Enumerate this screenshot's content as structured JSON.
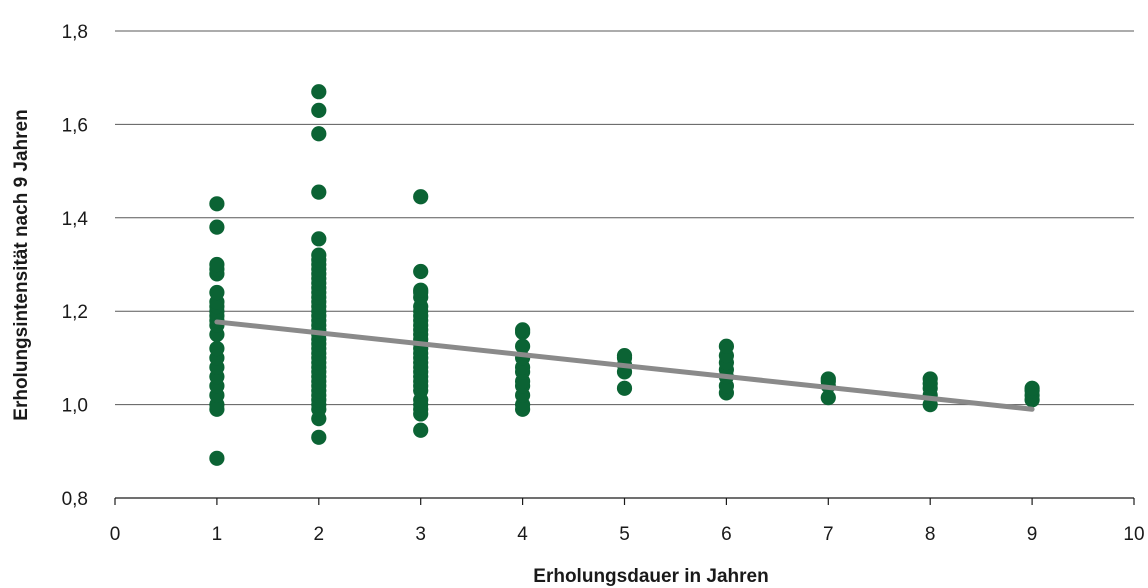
{
  "chart_data": {
    "type": "scatter",
    "xlabel": "Erholungsdauer in Jahren",
    "ylabel": "Erholungsintensität nach 9 Jahren",
    "xlim": [
      0,
      10
    ],
    "ylim": [
      0.8,
      1.8
    ],
    "x_ticks": [
      "0",
      "1",
      "2",
      "3",
      "4",
      "5",
      "6",
      "7",
      "8",
      "9",
      "10"
    ],
    "y_ticks": [
      "0,8",
      "1,0",
      "1,2",
      "1,4",
      "1,6",
      "1,8"
    ],
    "grid": "horizontal",
    "colors": {
      "points": "#0b6334",
      "trend": "#8a8a8a",
      "grid": "#595959"
    },
    "series": [
      {
        "type": "scatter",
        "points": [
          [
            1,
            0.885
          ],
          [
            1,
            0.99
          ],
          [
            1,
            1.0
          ],
          [
            1,
            1.02
          ],
          [
            1,
            1.04
          ],
          [
            1,
            1.06
          ],
          [
            1,
            1.08
          ],
          [
            1,
            1.1
          ],
          [
            1,
            1.12
          ],
          [
            1,
            1.15
          ],
          [
            1,
            1.17
          ],
          [
            1,
            1.18
          ],
          [
            1,
            1.19
          ],
          [
            1,
            1.2
          ],
          [
            1,
            1.21
          ],
          [
            1,
            1.22
          ],
          [
            1,
            1.24
          ],
          [
            1,
            1.28
          ],
          [
            1,
            1.29
          ],
          [
            1,
            1.3
          ],
          [
            1,
            1.38
          ],
          [
            1,
            1.43
          ],
          [
            2,
            0.93
          ],
          [
            2,
            0.97
          ],
          [
            2,
            0.99
          ],
          [
            2,
            1.0
          ],
          [
            2,
            1.01
          ],
          [
            2,
            1.02
          ],
          [
            2,
            1.03
          ],
          [
            2,
            1.04
          ],
          [
            2,
            1.05
          ],
          [
            2,
            1.06
          ],
          [
            2,
            1.07
          ],
          [
            2,
            1.08
          ],
          [
            2,
            1.09
          ],
          [
            2,
            1.1
          ],
          [
            2,
            1.11
          ],
          [
            2,
            1.12
          ],
          [
            2,
            1.13
          ],
          [
            2,
            1.14
          ],
          [
            2,
            1.15
          ],
          [
            2,
            1.16
          ],
          [
            2,
            1.17
          ],
          [
            2,
            1.18
          ],
          [
            2,
            1.19
          ],
          [
            2,
            1.2
          ],
          [
            2,
            1.21
          ],
          [
            2,
            1.22
          ],
          [
            2,
            1.23
          ],
          [
            2,
            1.24
          ],
          [
            2,
            1.25
          ],
          [
            2,
            1.26
          ],
          [
            2,
            1.27
          ],
          [
            2,
            1.28
          ],
          [
            2,
            1.29
          ],
          [
            2,
            1.3
          ],
          [
            2,
            1.31
          ],
          [
            2,
            1.32
          ],
          [
            2,
            1.355
          ],
          [
            2,
            1.455
          ],
          [
            2,
            1.58
          ],
          [
            2,
            1.63
          ],
          [
            2,
            1.67
          ],
          [
            3,
            0.945
          ],
          [
            3,
            0.98
          ],
          [
            3,
            0.99
          ],
          [
            3,
            1.0
          ],
          [
            3,
            1.01
          ],
          [
            3,
            1.03
          ],
          [
            3,
            1.04
          ],
          [
            3,
            1.05
          ],
          [
            3,
            1.06
          ],
          [
            3,
            1.07
          ],
          [
            3,
            1.08
          ],
          [
            3,
            1.09
          ],
          [
            3,
            1.1
          ],
          [
            3,
            1.11
          ],
          [
            3,
            1.12
          ],
          [
            3,
            1.13
          ],
          [
            3,
            1.14
          ],
          [
            3,
            1.15
          ],
          [
            3,
            1.16
          ],
          [
            3,
            1.17
          ],
          [
            3,
            1.18
          ],
          [
            3,
            1.19
          ],
          [
            3,
            1.2
          ],
          [
            3,
            1.21
          ],
          [
            3,
            1.23
          ],
          [
            3,
            1.24
          ],
          [
            3,
            1.245
          ],
          [
            3,
            1.285
          ],
          [
            3,
            1.445
          ],
          [
            4,
            0.99
          ],
          [
            4,
            1.0
          ],
          [
            4,
            1.02
          ],
          [
            4,
            1.04
          ],
          [
            4,
            1.05
          ],
          [
            4,
            1.07
          ],
          [
            4,
            1.08
          ],
          [
            4,
            1.1
          ],
          [
            4,
            1.125
          ],
          [
            4,
            1.155
          ],
          [
            4,
            1.16
          ],
          [
            5,
            1.035
          ],
          [
            5,
            1.07
          ],
          [
            5,
            1.085
          ],
          [
            5,
            1.1
          ],
          [
            5,
            1.105
          ],
          [
            6,
            1.025
          ],
          [
            6,
            1.04
          ],
          [
            6,
            1.06
          ],
          [
            6,
            1.075
          ],
          [
            6,
            1.09
          ],
          [
            6,
            1.105
          ],
          [
            6,
            1.125
          ],
          [
            7,
            1.015
          ],
          [
            7,
            1.04
          ],
          [
            7,
            1.05
          ],
          [
            7,
            1.055
          ],
          [
            8,
            1.0
          ],
          [
            8,
            1.02
          ],
          [
            8,
            1.035
          ],
          [
            8,
            1.045
          ],
          [
            8,
            1.055
          ],
          [
            9,
            1.01
          ],
          [
            9,
            1.02
          ],
          [
            9,
            1.03
          ],
          [
            9,
            1.035
          ]
        ]
      },
      {
        "type": "trendline",
        "points": [
          [
            1,
            1.177
          ],
          [
            9,
            0.99
          ]
        ]
      }
    ]
  }
}
